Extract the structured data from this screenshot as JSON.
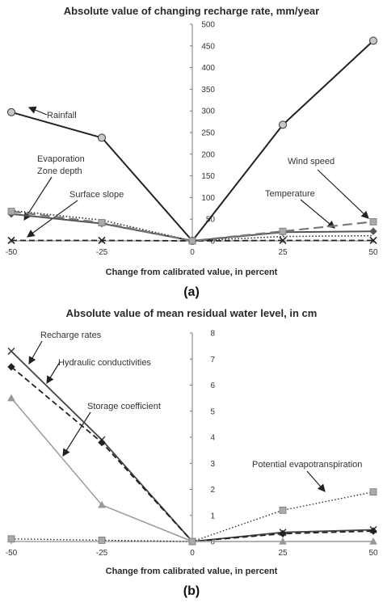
{
  "chart_data": [
    {
      "type": "line",
      "panel_label": "(a)",
      "title": "Absolute value of changing recharge rate, mm/year",
      "xlabel": "Change from calibrated value, in percent",
      "ylabel": "",
      "x": [
        -50,
        -25,
        0,
        25,
        50
      ],
      "x_tick_labels": [
        "-50",
        "-25",
        "0",
        "25",
        "50"
      ],
      "ylim": [
        0,
        500
      ],
      "y_ticks": [
        0,
        50,
        100,
        150,
        200,
        250,
        300,
        350,
        400,
        450,
        500
      ],
      "y_axis_position": "center",
      "grid": false,
      "series": [
        {
          "name": "Rainfall",
          "values": [
            297,
            238,
            0,
            268,
            462
          ],
          "color": "#222222",
          "dash": "solid",
          "width": 2,
          "marker": "circle"
        },
        {
          "name": "Evaporation Zone depth",
          "values": [
            62,
            40,
            0,
            20,
            22
          ],
          "color": "#555555",
          "dash": "solid",
          "width": 2,
          "marker": "diamond"
        },
        {
          "name": "Surface slope",
          "values": [
            70,
            48,
            0,
            10,
            12
          ],
          "color": "#222222",
          "dash": "dotted",
          "width": 1.5,
          "marker": "none"
        },
        {
          "name": "Temperature",
          "values": [
            1,
            1,
            0,
            1,
            1
          ],
          "color": "#222222",
          "dash": "dashed",
          "width": 1.8,
          "marker": "x"
        },
        {
          "name": "Wind speed",
          "values": [
            68,
            42,
            0,
            22,
            44
          ],
          "color": "#777777",
          "dash": "longdash",
          "width": 2.2,
          "marker": "square"
        }
      ],
      "annotations": [
        "Rainfall",
        "Evaporation",
        "Zone depth",
        "Surface slope",
        "Wind speed",
        "Temperature"
      ]
    },
    {
      "type": "line",
      "panel_label": "(b)",
      "title": "Absolute value of mean residual water level, in cm",
      "xlabel": "Change from calibrated value, in percent",
      "ylabel": "",
      "x": [
        -50,
        -25,
        0,
        25,
        50
      ],
      "x_tick_labels": [
        "-50",
        "-25",
        "0",
        "25",
        "50"
      ],
      "ylim": [
        0,
        8
      ],
      "y_ticks": [
        0,
        1,
        2,
        3,
        4,
        5,
        6,
        7,
        8
      ],
      "y_axis_position": "center",
      "grid": false,
      "series": [
        {
          "name": "Recharge rates",
          "values": [
            7.3,
            3.9,
            0,
            0.35,
            0.45
          ],
          "color": "#444444",
          "dash": "solid",
          "width": 1.8,
          "marker": "x"
        },
        {
          "name": "Hydraulic conductivities",
          "values": [
            6.7,
            3.8,
            0,
            0.3,
            0.4
          ],
          "color": "#222222",
          "dash": "dashed",
          "width": 1.8,
          "marker": "diamond"
        },
        {
          "name": "Storage coefficient",
          "values": [
            5.5,
            1.4,
            0,
            0,
            0
          ],
          "color": "#999999",
          "dash": "solid",
          "width": 1.5,
          "marker": "triangle"
        },
        {
          "name": "Potential evapotranspiration",
          "values": [
            0.1,
            0.05,
            0,
            1.2,
            1.9
          ],
          "color": "#222222",
          "dash": "dotted",
          "width": 1.3,
          "marker": "square"
        }
      ],
      "annotations": [
        "Recharge rates",
        "Hydraulic conductivities",
        "Storage coefficient",
        "Potential evapotranspiration"
      ]
    }
  ]
}
